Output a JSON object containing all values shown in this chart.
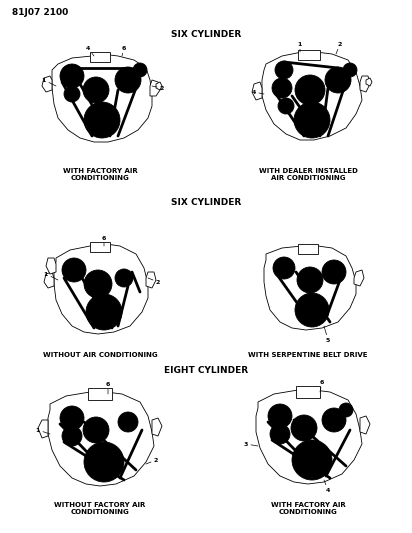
{
  "title_code": "81J07 2100",
  "background_color": "#ffffff",
  "section_titles": {
    "top": "SIX CYLINDER",
    "middle": "SIX CYLINDER",
    "bottom": "EIGHT CYLINDER"
  },
  "captions": {
    "tl": "WITH FACTORY AIR\nCONDITIONING",
    "tr": "WITH DEALER INSTALLED\nAIR CONDITIONING",
    "ml": "WITHOUT AIR CONDITIONING",
    "mr": "WITH SERPENTINE BELT DRIVE",
    "bl": "WITHOUT FACTORY AIR\nCONDITIONING",
    "br": "WITH FACTORY AIR\nCONDITIONING"
  },
  "font_size_title": 6.5,
  "font_size_caption": 5.0,
  "font_size_code": 6.5,
  "font_size_label": 4.5
}
